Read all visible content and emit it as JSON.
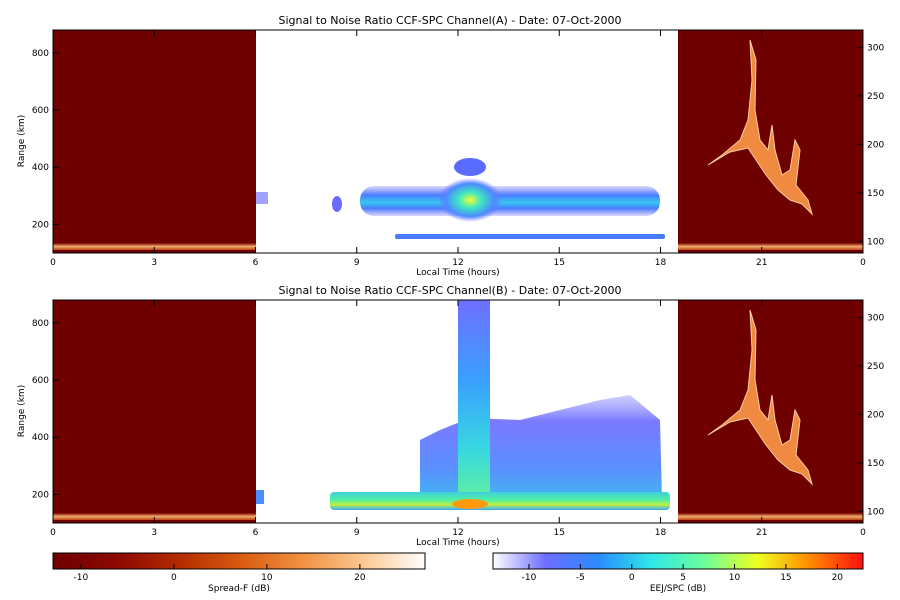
{
  "chart_data": [
    {
      "type": "heatmap",
      "title": "Signal to Noise Ratio CCF-SPC Channel(A) - Date: 07-Oct-2000",
      "xlabel": "Local Time (hours)",
      "ylabel": "Range (km)",
      "x_ticks": [
        "0",
        "3",
        "6",
        "9",
        "12",
        "15",
        "18",
        "21",
        "0"
      ],
      "y_left_ticks": [
        200,
        400,
        600,
        800
      ],
      "y_right_ticks": [
        100,
        150,
        200,
        250,
        300
      ],
      "ylim_left": [
        100,
        880
      ],
      "ylim_right": [
        88,
        318
      ],
      "regions": [
        {
          "name": "night_spread_f",
          "x_range": [
            0,
            6
          ],
          "scale": "Spread-F"
        },
        {
          "name": "day_eej",
          "x_range": [
            6,
            18.5
          ],
          "scale": "EEJ/SPC"
        },
        {
          "name": "night_spread_f",
          "x_range": [
            18.5,
            24
          ],
          "scale": "Spread-F"
        }
      ],
      "features": [
        {
          "name": "F-layer echo band",
          "x": [
            6.0,
            18.3
          ],
          "y": [
            260,
            330
          ],
          "snr_db_peak": 14
        },
        {
          "name": "Enhancement near noon",
          "x": [
            11.8,
            13.1
          ],
          "y": [
            230,
            420
          ],
          "snr_db_peak": 14
        },
        {
          "name": "Lower echo band",
          "x": [
            9.5,
            17.5
          ],
          "y": [
            150,
            175
          ],
          "snr_db_peak": 2
        },
        {
          "name": "Evening plume trace",
          "x": [
            18.9,
            23.6
          ],
          "y": [
            120,
            310
          ],
          "snr_db_peak": 20
        }
      ]
    },
    {
      "type": "heatmap",
      "title": "Signal to Noise Ratio CCF-SPC Channel(B) - Date: 07-Oct-2000",
      "xlabel": "Local Time (hours)",
      "ylabel": "Range (km)",
      "x_ticks": [
        "0",
        "3",
        "6",
        "9",
        "12",
        "15",
        "18",
        "21",
        "0"
      ],
      "y_left_ticks": [
        200,
        400,
        600,
        800
      ],
      "y_right_ticks": [
        100,
        150,
        200,
        250,
        300
      ],
      "ylim_left": [
        100,
        880
      ],
      "ylim_right": [
        88,
        318
      ],
      "features": [
        {
          "name": "Broad echo region",
          "x": [
            8.3,
            18.3
          ],
          "y": [
            150,
            470
          ],
          "snr_db_peak": 4
        },
        {
          "name": "Noon plume",
          "x": [
            11.8,
            13.0
          ],
          "y": [
            150,
            880
          ],
          "snr_db_peak": 10
        },
        {
          "name": "Bottomside band",
          "x": [
            8.3,
            18.3
          ],
          "y": [
            145,
            195
          ],
          "snr_db_peak": 18
        },
        {
          "name": "Evening plume trace",
          "x": [
            18.9,
            23.6
          ],
          "y": [
            120,
            310
          ],
          "snr_db_peak": 20
        }
      ]
    }
  ],
  "colorbars": [
    {
      "label": "Spread-F (dB)",
      "ticks": [
        "-10",
        "0",
        "10",
        "20"
      ],
      "range": [
        -13,
        27
      ],
      "colors": [
        "#6e0000",
        "#8c0800",
        "#b22a00",
        "#d85a10",
        "#f09040",
        "#fcc890",
        "#ffffff"
      ]
    },
    {
      "label": "EEJ/SPC (dB)",
      "ticks": [
        "-10",
        "-5",
        "0",
        "5",
        "10",
        "15",
        "20"
      ],
      "range": [
        -13.5,
        22.5
      ],
      "colors": [
        "#ffffff",
        "#6d6dff",
        "#2a8cff",
        "#2ee8e8",
        "#6cff9a",
        "#f0ff20",
        "#ff8a00",
        "#ff1010"
      ]
    }
  ]
}
